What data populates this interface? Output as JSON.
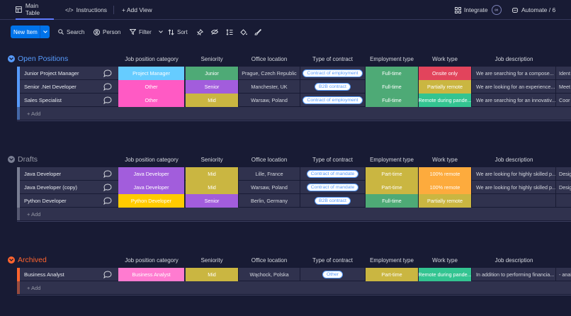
{
  "tabs": {
    "main_table": "Main Table",
    "instructions": "Instructions",
    "add_view": "+ Add View"
  },
  "top_right": {
    "integrate": "Integrate",
    "automate": "Automate / 6"
  },
  "toolbar": {
    "new_item": "New Item",
    "search": "Search",
    "person": "Person",
    "filter": "Filter",
    "sort": "Sort"
  },
  "columns": {
    "category": "Job position category",
    "seniority": "Seniority",
    "office": "Office location",
    "contract": "Type of contract",
    "employment": "Employment type",
    "worktype": "Work type",
    "description": "Job description"
  },
  "colors": {
    "open": "#579bfc",
    "drafts": "#797e93",
    "archived": "#ff642e"
  },
  "add_label": "+ Add",
  "groups": [
    {
      "title": "Open Positions",
      "rows": [
        {
          "name": "Junior Project Manager",
          "category": "Project Manager",
          "category_color": "#66ccff",
          "seniority": "Junior",
          "seniority_color": "#4eaa76",
          "office": "Prague, Czech Republic",
          "contract": "Contract of employment",
          "employment": "Full-time",
          "employment_color": "#4eaa76",
          "worktype": "Onsite only",
          "worktype_color": "#e2445c",
          "description": "We are searching for a compose...",
          "extra": "Ident"
        },
        {
          "name": "Senior .Net Developer",
          "category": "Other",
          "category_color": "#ff5ac4",
          "seniority": "Senior",
          "seniority_color": "#a25ddc",
          "office": "Manchester, UK",
          "contract": "B2B contract",
          "employment": "Full-time",
          "employment_color": "#4eaa76",
          "worktype": "Partially remote",
          "worktype_color": "#cab641",
          "description": "We are looking for an experience...",
          "extra": "Meet"
        },
        {
          "name": "Sales Specialist",
          "category": "Other",
          "category_color": "#ff5ac4",
          "seniority": "Mid",
          "seniority_color": "#cab641",
          "office": "Warsaw, Poland",
          "contract": "Contract of employment",
          "employment": "Full-time",
          "employment_color": "#4eaa76",
          "worktype": "Remote during pande...",
          "worktype_color": "#33c491",
          "description": "We are searching for an innovativ...",
          "extra": "Coor"
        }
      ]
    },
    {
      "title": "Drafts",
      "rows": [
        {
          "name": "Java Developer",
          "category": "Java Developer",
          "category_color": "#a25ddc",
          "seniority": "Mid",
          "seniority_color": "#cab641",
          "office": "Lille, France",
          "contract": "Contract of mandate",
          "employment": "Part-time",
          "employment_color": "#cab641",
          "worktype": "100% remote",
          "worktype_color": "#fdab3d",
          "description": "We are looking for highly skilled p...",
          "extra": "Desig"
        },
        {
          "name": "Java Developer (copy)",
          "category": "Java Developer",
          "category_color": "#a25ddc",
          "seniority": "Mid",
          "seniority_color": "#cab641",
          "office": "Warsaw, Poland",
          "contract": "Contract of mandate",
          "employment": "Part-time",
          "employment_color": "#cab641",
          "worktype": "100% remote",
          "worktype_color": "#fdab3d",
          "description": "We are looking for highly skilled p...",
          "extra": "Desig"
        },
        {
          "name": "Python Developer",
          "category": "Python Developer",
          "category_color": "#ffcb00",
          "seniority": "Senior",
          "seniority_color": "#a25ddc",
          "office": "Berlin, Germany",
          "contract": "B2B contract",
          "employment": "Full-time",
          "employment_color": "#4eaa76",
          "worktype": "Partially remote",
          "worktype_color": "#cab641",
          "description": "",
          "extra": ""
        }
      ]
    },
    {
      "title": "Archived",
      "rows": [
        {
          "name": "Business Analyst",
          "category": "Business Analyst",
          "category_color": "#ff7bd0",
          "seniority": "Mid",
          "seniority_color": "#cab641",
          "office": "Wąchock, Polska",
          "contract": "Other",
          "employment": "Part-time",
          "employment_color": "#cab641",
          "worktype": "Remote during pande...",
          "worktype_color": "#33c491",
          "description": "In addition to performing financia...",
          "extra": "- anal"
        }
      ]
    }
  ]
}
